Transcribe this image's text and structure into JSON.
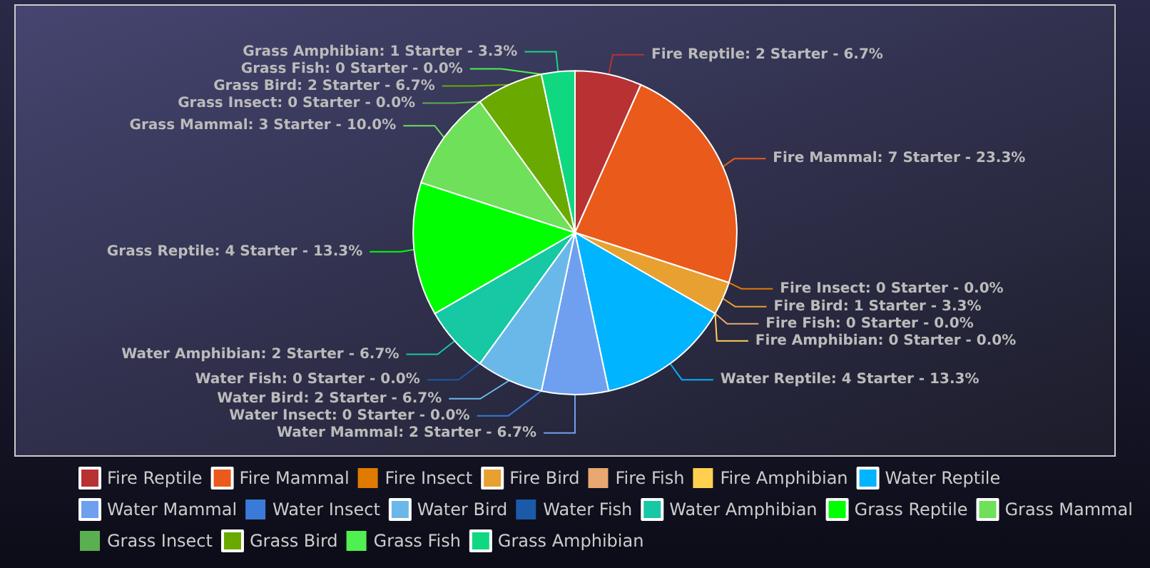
{
  "chart_data": {
    "type": "pie",
    "categories": [
      "Fire Reptile",
      "Fire Mammal",
      "Fire Insect",
      "Fire Bird",
      "Fire Fish",
      "Fire Amphibian",
      "Water Reptile",
      "Water Mammal",
      "Water Insect",
      "Water Bird",
      "Water Fish",
      "Water Amphibian",
      "Grass Reptile",
      "Grass Mammal",
      "Grass Insect",
      "Grass Bird",
      "Grass Fish",
      "Grass Amphibian"
    ],
    "values": [
      2,
      7,
      0,
      1,
      0,
      0,
      4,
      2,
      0,
      2,
      0,
      2,
      4,
      3,
      0,
      2,
      0,
      1
    ],
    "colors": [
      "#b83234",
      "#ea5a1a",
      "#e07b00",
      "#e8a030",
      "#e8a870",
      "#ffd050",
      "#00b4ff",
      "#6fa0f0",
      "#3a7ad8",
      "#6ab8ea",
      "#1a5aa8",
      "#16c8a4",
      "#00ff00",
      "#6ee05a",
      "#5ab050",
      "#6aaa00",
      "#50f050",
      "#10d880"
    ],
    "value_labels": [
      "Fire Reptile: 2 Starter - 6.7%",
      "Fire Mammal: 7 Starter - 23.3%",
      "Fire Insect: 0 Starter - 0.0%",
      "Fire Bird: 1 Starter - 3.3%",
      "Fire Fish: 0 Starter - 0.0%",
      "Fire Amphibian: 0 Starter - 0.0%",
      "Water Reptile: 4 Starter - 13.3%",
      "Water Mammal: 2 Starter - 6.7%",
      "Water Insect: 0 Starter - 0.0%",
      "Water Bird: 2 Starter - 6.7%",
      "Water Fish: 0 Starter - 0.0%",
      "Water Amphibian: 2 Starter - 6.7%",
      "Grass Reptile: 4 Starter - 13.3%",
      "Grass Mammal: 3 Starter - 10.0%",
      "Grass Insect: 0 Starter - 0.0%",
      "Grass Bird: 2 Starter - 6.7%",
      "Grass Fish: 0 Starter - 0.0%",
      "Grass Amphibian: 1 Starter - 3.3%"
    ],
    "legend": "bottom"
  }
}
